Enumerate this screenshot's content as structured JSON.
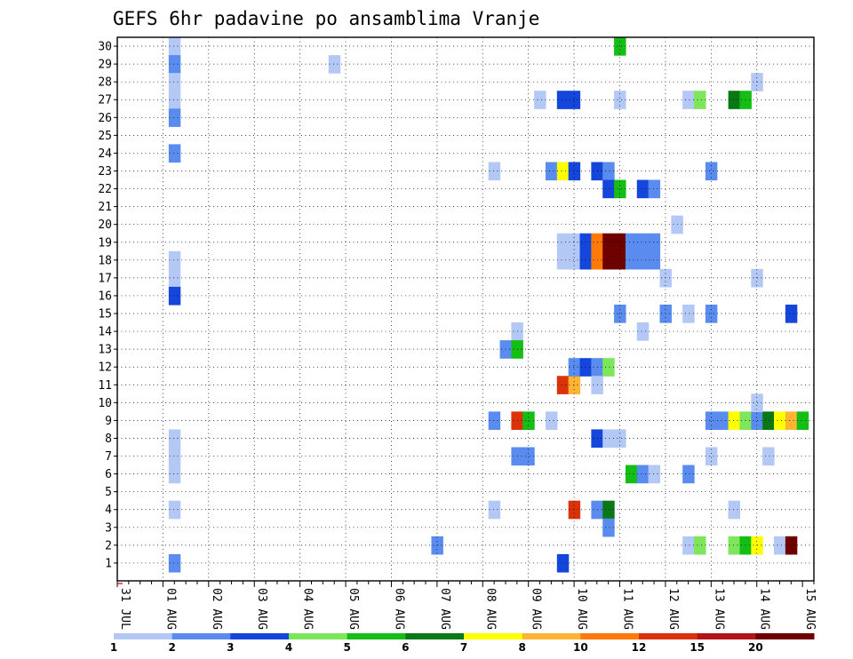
{
  "chart_data": {
    "type": "heatmap",
    "title": "GEFS 6hr padavine po ansamblima Vranje",
    "x_tick_labels": [
      "31 JUL",
      "01 AUG",
      "02 AUG",
      "03 AUG",
      "04 AUG",
      "05 AUG",
      "06 AUG",
      "07 AUG",
      "08 AUG",
      "09 AUG",
      "10 AUG",
      "11 AUG",
      "12 AUG",
      "13 AUG",
      "14 AUG",
      "15 AUG"
    ],
    "y_tick_labels": [
      "1",
      "2",
      "3",
      "4",
      "5",
      "6",
      "7",
      "8",
      "9",
      "10",
      "11",
      "12",
      "13",
      "14",
      "15",
      "16",
      "17",
      "18",
      "19",
      "20",
      "21",
      "22",
      "23",
      "24",
      "25",
      "26",
      "27",
      "28",
      "29",
      "30"
    ],
    "x_unit": "6-hour steps from 31 JUL 00Z",
    "grid": true,
    "colorbar": {
      "labels": [
        "1",
        "2",
        "3",
        "4",
        "5",
        "6",
        "7",
        "8",
        "10",
        "12",
        "15",
        "20"
      ],
      "colors": [
        "#b3c8f5",
        "#5a8cf0",
        "#1446dc",
        "#7de65a",
        "#14be14",
        "#0a7814",
        "#ffff00",
        "#ffb432",
        "#ff780a",
        "#dc320a",
        "#b41414",
        "#6e0000"
      ]
    },
    "cells": [
      {
        "member": 30,
        "x": 5,
        "v": 1.5
      },
      {
        "member": 29,
        "x": 5,
        "v": 2.5
      },
      {
        "member": 28,
        "x": 5,
        "v": 1.5
      },
      {
        "member": 27,
        "x": 5,
        "v": 1.5
      },
      {
        "member": 26,
        "x": 5,
        "v": 2.5
      },
      {
        "member": 24,
        "x": 5,
        "v": 2.5
      },
      {
        "member": 18,
        "x": 5,
        "v": 1.5
      },
      {
        "member": 17,
        "x": 5,
        "v": 1.5
      },
      {
        "member": 16,
        "x": 5,
        "v": 3.5
      },
      {
        "member": 8,
        "x": 5,
        "v": 1.5
      },
      {
        "member": 7,
        "x": 5,
        "v": 1.5
      },
      {
        "member": 6,
        "x": 5,
        "v": 1.5
      },
      {
        "member": 4,
        "x": 5,
        "v": 1.5
      },
      {
        "member": 1,
        "x": 5,
        "v": 2.5
      },
      {
        "member": 29,
        "x": 19,
        "v": 1.5
      },
      {
        "member": 2,
        "x": 28,
        "v": 2.5
      },
      {
        "member": 23,
        "x": 33,
        "v": 1.5
      },
      {
        "member": 9,
        "x": 33,
        "v": 2.5
      },
      {
        "member": 4,
        "x": 33,
        "v": 1.5
      },
      {
        "member": 14,
        "x": 35,
        "v": 1.5
      },
      {
        "member": 13,
        "x": 34,
        "v": 2.5
      },
      {
        "member": 13,
        "x": 35,
        "v": 5.5
      },
      {
        "member": 9,
        "x": 35,
        "v": 12.5
      },
      {
        "member": 9,
        "x": 36,
        "v": 5.5
      },
      {
        "member": 7,
        "x": 35,
        "v": 2.5
      },
      {
        "member": 7,
        "x": 36,
        "v": 2.5
      },
      {
        "member": 27,
        "x": 37,
        "v": 1.5
      },
      {
        "member": 9,
        "x": 38,
        "v": 1.5
      },
      {
        "member": 23,
        "x": 38,
        "v": 2.5
      },
      {
        "member": 23,
        "x": 39,
        "v": 7.5
      },
      {
        "member": 23,
        "x": 40,
        "v": 3.5
      },
      {
        "member": 27,
        "x": 39,
        "v": 3.5
      },
      {
        "member": 27,
        "x": 40,
        "v": 3.5
      },
      {
        "member": 19,
        "x": 39,
        "v": 1.5
      },
      {
        "member": 19,
        "x": 40,
        "v": 1.5
      },
      {
        "member": 19,
        "x": 41,
        "v": 3.5
      },
      {
        "member": 19,
        "x": 42,
        "v": 10.5
      },
      {
        "member": 19,
        "x": 43,
        "v": 25
      },
      {
        "member": 19,
        "x": 44,
        "v": 25
      },
      {
        "member": 18,
        "x": 39,
        "v": 1.5
      },
      {
        "member": 18,
        "x": 40,
        "v": 1.5
      },
      {
        "member": 18,
        "x": 41,
        "v": 3.5
      },
      {
        "member": 18,
        "x": 42,
        "v": 10.5
      },
      {
        "member": 18,
        "x": 43,
        "v": 25
      },
      {
        "member": 18,
        "x": 44,
        "v": 25
      },
      {
        "member": 18,
        "x": 45,
        "v": 2.5
      },
      {
        "member": 18,
        "x": 46,
        "v": 2.5
      },
      {
        "member": 18,
        "x": 47,
        "v": 2.5
      },
      {
        "member": 19,
        "x": 45,
        "v": 2.5
      },
      {
        "member": 19,
        "x": 46,
        "v": 2.5
      },
      {
        "member": 19,
        "x": 47,
        "v": 2.5
      },
      {
        "member": 11,
        "x": 39,
        "v": 13.5
      },
      {
        "member": 11,
        "x": 40,
        "v": 9
      },
      {
        "member": 4,
        "x": 40,
        "v": 13.5
      },
      {
        "member": 1,
        "x": 39,
        "v": 3.5
      },
      {
        "member": 12,
        "x": 40,
        "v": 2.5
      },
      {
        "member": 12,
        "x": 41,
        "v": 3.5
      },
      {
        "member": 12,
        "x": 42,
        "v": 2.5
      },
      {
        "member": 12,
        "x": 43,
        "v": 4.5
      },
      {
        "member": 11,
        "x": 42,
        "v": 1.5
      },
      {
        "member": 23,
        "x": 42,
        "v": 3.5
      },
      {
        "member": 23,
        "x": 43,
        "v": 2.5
      },
      {
        "member": 22,
        "x": 43,
        "v": 3.5
      },
      {
        "member": 22,
        "x": 44,
        "v": 5.5
      },
      {
        "member": 8,
        "x": 42,
        "v": 3.5
      },
      {
        "member": 8,
        "x": 43,
        "v": 1.5
      },
      {
        "member": 8,
        "x": 44,
        "v": 1.5
      },
      {
        "member": 4,
        "x": 42,
        "v": 2.5
      },
      {
        "member": 4,
        "x": 43,
        "v": 6.5
      },
      {
        "member": 3,
        "x": 43,
        "v": 2.5
      },
      {
        "member": 30,
        "x": 44,
        "v": 5.5
      },
      {
        "member": 27,
        "x": 44,
        "v": 1.5
      },
      {
        "member": 15,
        "x": 44,
        "v": 2.5
      },
      {
        "member": 22,
        "x": 46,
        "v": 3.5
      },
      {
        "member": 22,
        "x": 47,
        "v": 2.5
      },
      {
        "member": 6,
        "x": 45,
        "v": 5.5
      },
      {
        "member": 6,
        "x": 46,
        "v": 2.5
      },
      {
        "member": 6,
        "x": 47,
        "v": 1.5
      },
      {
        "member": 14,
        "x": 46,
        "v": 1.5
      },
      {
        "member": 17,
        "x": 48,
        "v": 1.5
      },
      {
        "member": 15,
        "x": 48,
        "v": 2.5
      },
      {
        "member": 20,
        "x": 49,
        "v": 1.5
      },
      {
        "member": 27,
        "x": 50,
        "v": 1.5
      },
      {
        "member": 27,
        "x": 51,
        "v": 4.5
      },
      {
        "member": 15,
        "x": 50,
        "v": 1.5
      },
      {
        "member": 6,
        "x": 50,
        "v": 2.5
      },
      {
        "member": 2,
        "x": 50,
        "v": 1.5
      },
      {
        "member": 2,
        "x": 51,
        "v": 4.5
      },
      {
        "member": 23,
        "x": 52,
        "v": 2.5
      },
      {
        "member": 15,
        "x": 52,
        "v": 2.5
      },
      {
        "member": 7,
        "x": 52,
        "v": 1.5
      },
      {
        "member": 9,
        "x": 52,
        "v": 2.5
      },
      {
        "member": 9,
        "x": 53,
        "v": 2.5
      },
      {
        "member": 9,
        "x": 54,
        "v": 7.5
      },
      {
        "member": 9,
        "x": 55,
        "v": 4.5
      },
      {
        "member": 9,
        "x": 56,
        "v": 2.5
      },
      {
        "member": 9,
        "x": 57,
        "v": 6.5
      },
      {
        "member": 9,
        "x": 58,
        "v": 7.5
      },
      {
        "member": 9,
        "x": 59,
        "v": 9
      },
      {
        "member": 9,
        "x": 60,
        "v": 5.5
      },
      {
        "member": 4,
        "x": 54,
        "v": 1.5
      },
      {
        "member": 27,
        "x": 54,
        "v": 6.5
      },
      {
        "member": 27,
        "x": 55,
        "v": 5.5
      },
      {
        "member": 2,
        "x": 54,
        "v": 4.5
      },
      {
        "member": 2,
        "x": 55,
        "v": 5.5
      },
      {
        "member": 2,
        "x": 56,
        "v": 7.5
      },
      {
        "member": 2,
        "x": 58,
        "v": 1.5
      },
      {
        "member": 2,
        "x": 59,
        "v": 25
      },
      {
        "member": 28,
        "x": 56,
        "v": 1.5
      },
      {
        "member": 17,
        "x": 56,
        "v": 1.5
      },
      {
        "member": 10,
        "x": 56,
        "v": 1.5
      },
      {
        "member": 7,
        "x": 57,
        "v": 1.5
      },
      {
        "member": 15,
        "x": 59,
        "v": 3.5
      }
    ]
  }
}
